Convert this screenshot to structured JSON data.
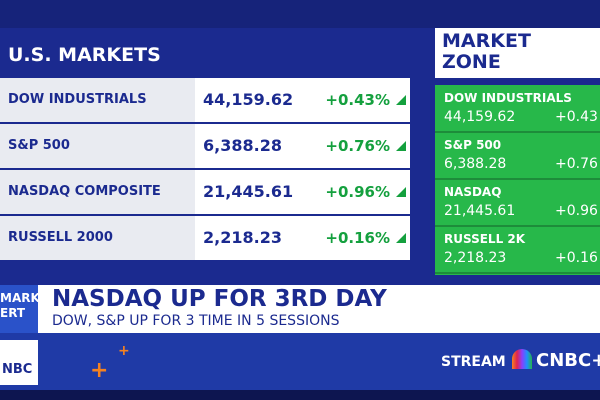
{
  "left_panel": {
    "title": "U.S. MARKETS",
    "rows": [
      {
        "name": "DOW INDUSTRIALS",
        "value": "44,159.62",
        "change": "+0.43%"
      },
      {
        "name": "S&P 500",
        "value": "6,388.28",
        "change": "+0.76%"
      },
      {
        "name": "NASDAQ COMPOSITE",
        "value": "21,445.61",
        "change": "+0.96%"
      },
      {
        "name": "RUSSELL 2000",
        "value": "2,218.23",
        "change": "+0.16%"
      }
    ]
  },
  "right_panel": {
    "title": "MARKET ZONE",
    "rows": [
      {
        "name": "DOW INDUSTRIALS",
        "value": "44,159.62",
        "change": "+0.43"
      },
      {
        "name": "S&P 500",
        "value": "6,388.28",
        "change": "+0.76"
      },
      {
        "name": "NASDAQ",
        "value": "21,445.61",
        "change": "+0.96"
      },
      {
        "name": "RUSSELL 2K",
        "value": "2,218.23",
        "change": "+0.16"
      }
    ]
  },
  "banner": {
    "label": [
      "MARKET",
      "ERT"
    ],
    "headline": "NASDAQ UP FOR 3RD DAY",
    "subhead": "DOW, S&P UP FOR 3 TIME IN 5 SESSIONS"
  },
  "footer": {
    "logo": "NBC",
    "stream": "STREAM",
    "brand": "CNBC+"
  }
}
